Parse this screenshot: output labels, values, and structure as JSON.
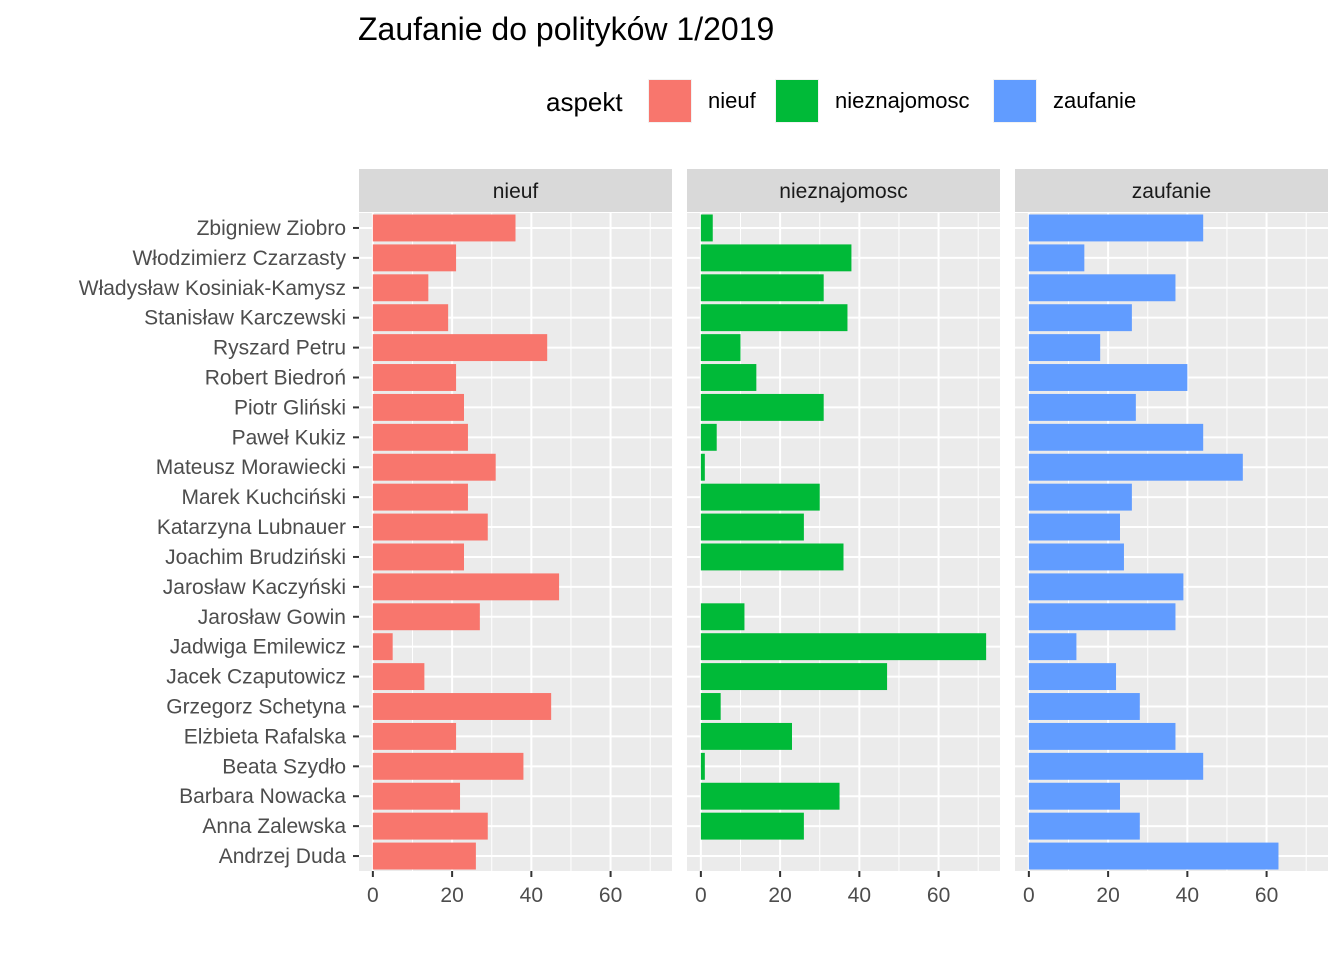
{
  "chart_data": {
    "type": "bar",
    "orientation": "horizontal",
    "faceted": true,
    "title": "Zaufanie do polityków 1/2019",
    "legend": {
      "title": "aspekt",
      "placement": "top",
      "entries": [
        {
          "label": "nieuf",
          "color": "#F8766D"
        },
        {
          "label": "nieznajomosc",
          "color": "#00BA38"
        },
        {
          "label": "zaufanie",
          "color": "#619CFF"
        }
      ]
    },
    "categories": [
      "Zbigniew Ziobro",
      "Włodzimierz Czarzasty",
      "Władysław Kosiniak-Kamysz",
      "Stanisław Karczewski",
      "Ryszard Petru",
      "Robert Biedroń",
      "Piotr Gliński",
      "Paweł Kukiz",
      "Mateusz Morawiecki",
      "Marek Kuchciński",
      "Katarzyna Lubnauer",
      "Joachim Brudziński",
      "Jarosław Kaczyński",
      "Jarosław Gowin",
      "Jadwiga Emilewicz",
      "Jacek Czaputowicz",
      "Grzegorz Schetyna",
      "Elżbieta Rafalska",
      "Beata Szydło",
      "Barbara Nowacka",
      "Anna Zalewska",
      "Andrzej Duda"
    ],
    "series": [
      {
        "name": "nieuf",
        "color": "#F8766D",
        "values": [
          36,
          21,
          14,
          19,
          44,
          21,
          23,
          24,
          31,
          24,
          29,
          23,
          47,
          27,
          5,
          13,
          45,
          21,
          38,
          22,
          29,
          26
        ]
      },
      {
        "name": "nieznajomosc",
        "color": "#00BA38",
        "values": [
          3,
          38,
          31,
          37,
          10,
          14,
          31,
          4,
          1,
          30,
          26,
          36,
          0,
          11,
          72,
          47,
          5,
          23,
          1,
          35,
          26,
          0
        ]
      },
      {
        "name": "zaufanie",
        "color": "#619CFF",
        "values": [
          44,
          14,
          37,
          26,
          18,
          40,
          27,
          44,
          54,
          26,
          23,
          24,
          39,
          37,
          12,
          22,
          28,
          37,
          44,
          23,
          28,
          63
        ]
      }
    ],
    "xlim": [
      -3.5,
      75.5
    ],
    "xticks": [
      0,
      20,
      40,
      60
    ],
    "grid": true,
    "xlabel": "",
    "ylabel": ""
  }
}
